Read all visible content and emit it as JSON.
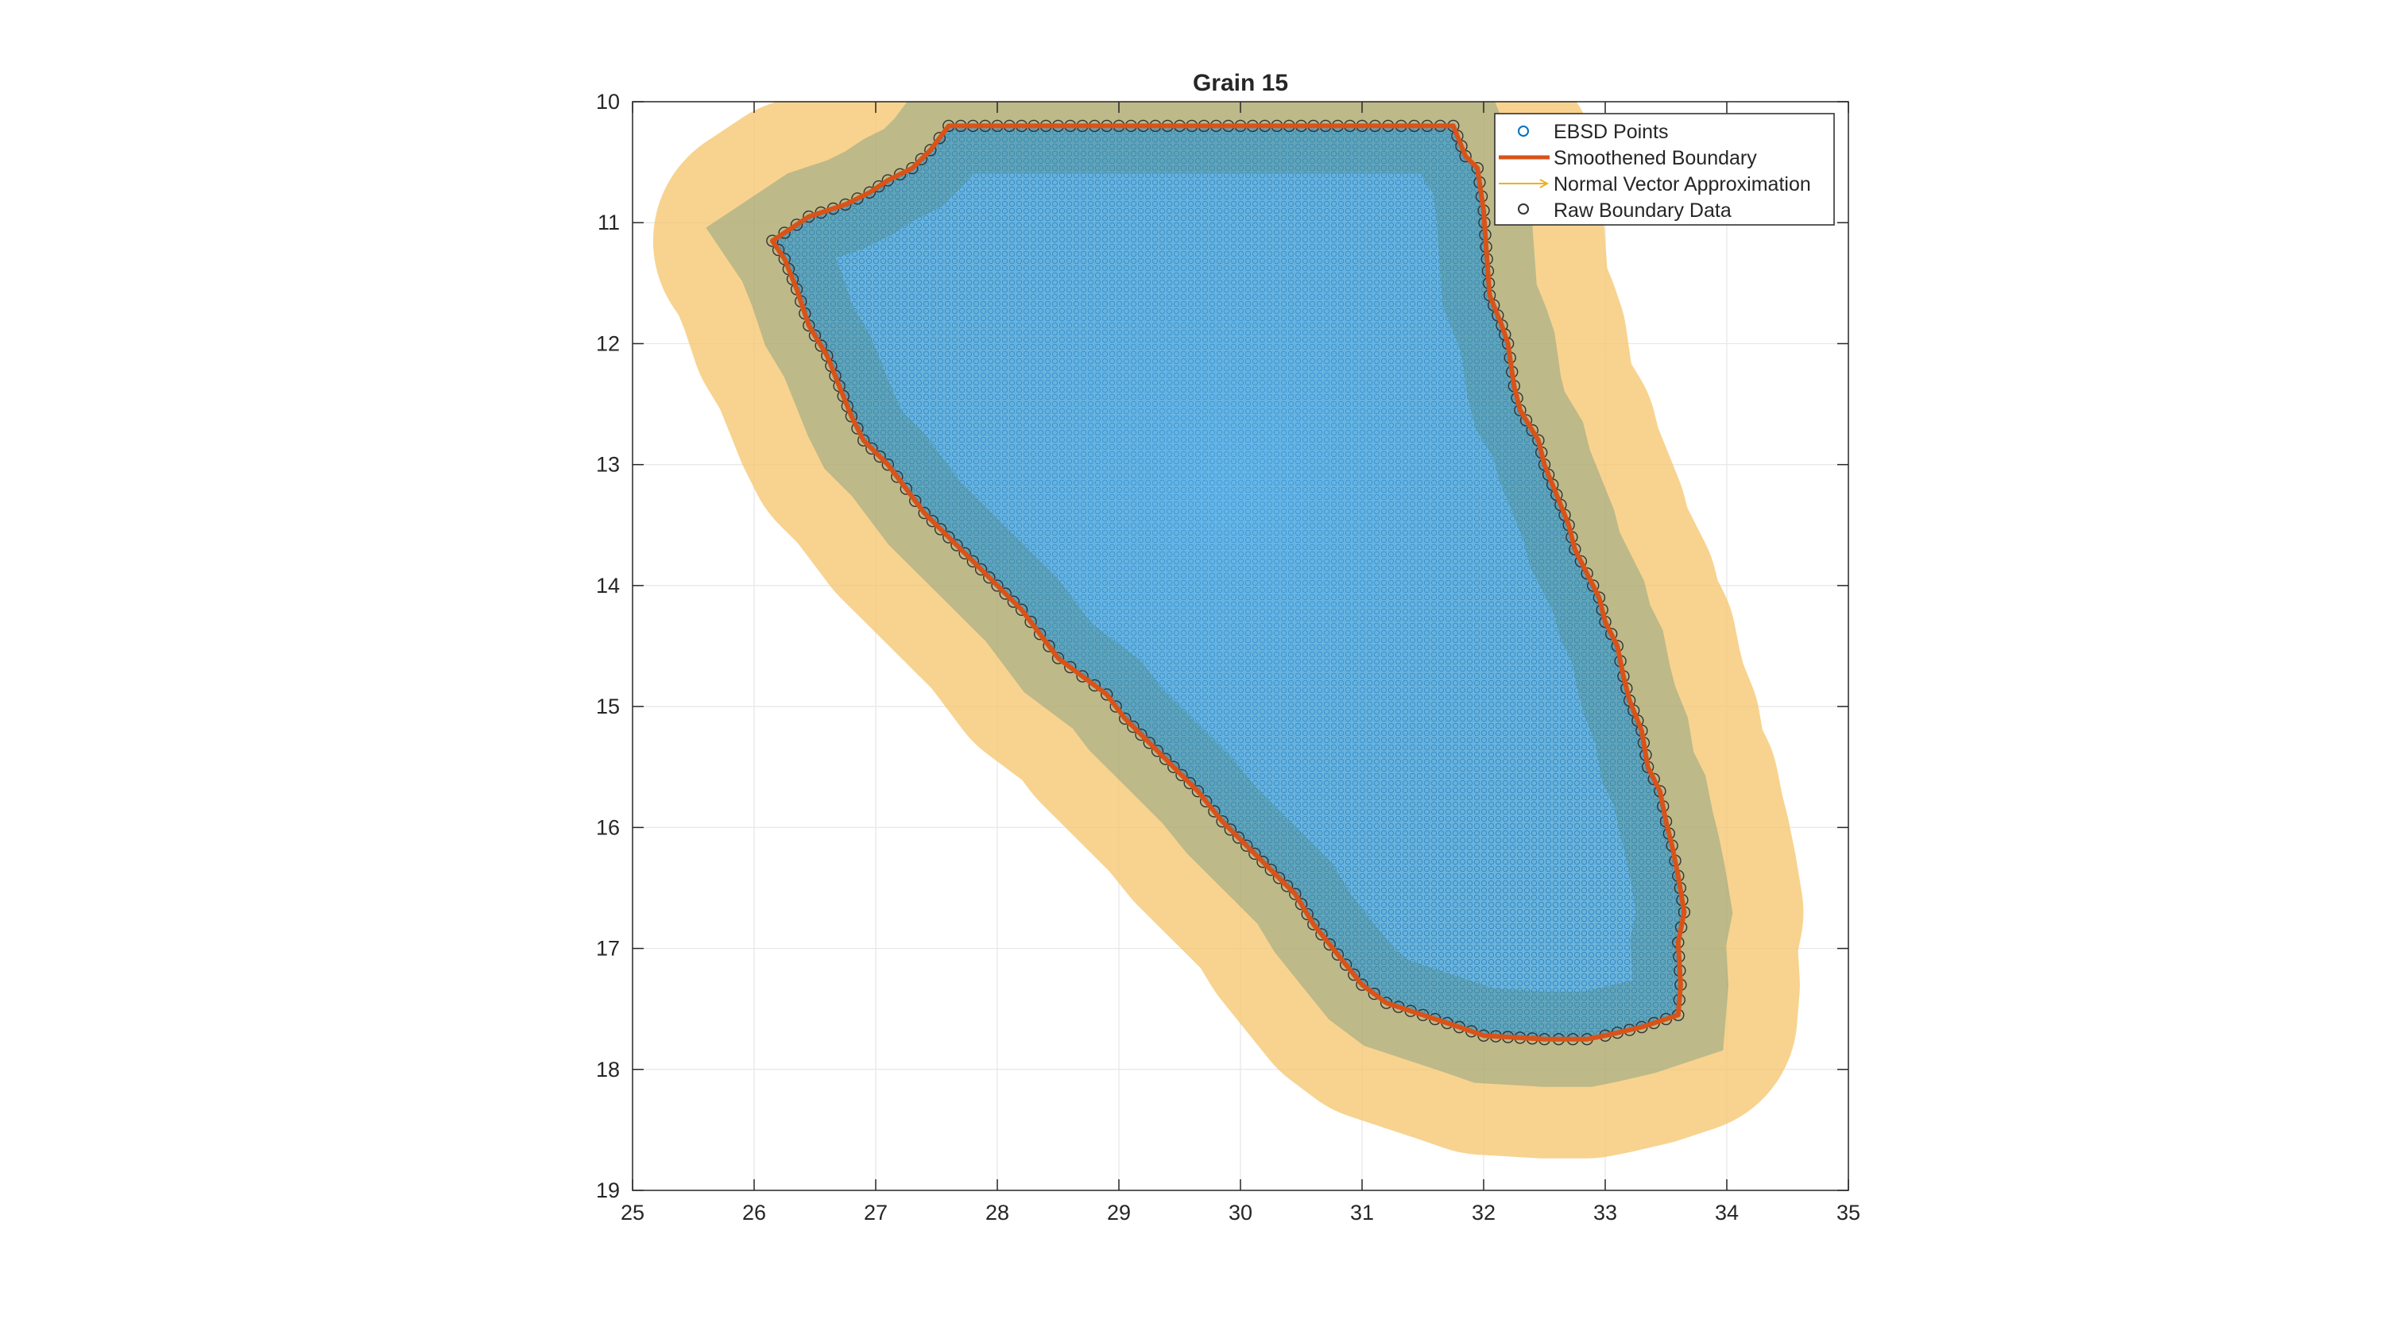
{
  "chart_data": {
    "type": "scatter",
    "title": "Grain 15",
    "xlabel": "",
    "ylabel": "",
    "xlim": [
      25,
      35
    ],
    "ylim": [
      10,
      19
    ],
    "y_direction": "reversed",
    "grid": true,
    "x_ticks": [
      "25",
      "26",
      "27",
      "28",
      "29",
      "30",
      "31",
      "32",
      "33",
      "34",
      "35"
    ],
    "y_ticks": [
      "10",
      "11",
      "12",
      "13",
      "14",
      "15",
      "16",
      "17",
      "18",
      "19"
    ],
    "legend_position": "top-right",
    "series": [
      {
        "name": "EBSD Points",
        "style": "circle-marker",
        "color": "#0072BD"
      },
      {
        "name": "Smoothened Boundary",
        "style": "line",
        "color": "#D95319"
      },
      {
        "name": "Normal Vector Approximation",
        "style": "arrow",
        "color": "#EDB120"
      },
      {
        "name": "Raw Boundary Data",
        "style": "circle-marker",
        "color": "#333333"
      }
    ],
    "boundary": [
      [
        27.6,
        10.2
      ],
      [
        28.0,
        10.2
      ],
      [
        29.0,
        10.2
      ],
      [
        30.0,
        10.2
      ],
      [
        31.0,
        10.2
      ],
      [
        31.75,
        10.2
      ],
      [
        31.85,
        10.45
      ],
      [
        31.95,
        10.55
      ],
      [
        32.0,
        10.9
      ],
      [
        32.02,
        11.2
      ],
      [
        32.05,
        11.6
      ],
      [
        32.15,
        11.85
      ],
      [
        32.2,
        12.0
      ],
      [
        32.25,
        12.35
      ],
      [
        32.3,
        12.55
      ],
      [
        32.45,
        12.8
      ],
      [
        32.5,
        13.0
      ],
      [
        32.6,
        13.25
      ],
      [
        32.7,
        13.5
      ],
      [
        32.75,
        13.7
      ],
      [
        32.85,
        13.9
      ],
      [
        32.95,
        14.1
      ],
      [
        33.0,
        14.3
      ],
      [
        33.1,
        14.5
      ],
      [
        33.15,
        14.75
      ],
      [
        33.2,
        14.95
      ],
      [
        33.3,
        15.2
      ],
      [
        33.35,
        15.5
      ],
      [
        33.45,
        15.7
      ],
      [
        33.5,
        15.95
      ],
      [
        33.55,
        16.15
      ],
      [
        33.6,
        16.4
      ],
      [
        33.65,
        16.7
      ],
      [
        33.6,
        16.95
      ],
      [
        33.62,
        17.3
      ],
      [
        33.6,
        17.55
      ],
      [
        33.3,
        17.65
      ],
      [
        33.0,
        17.72
      ],
      [
        32.85,
        17.75
      ],
      [
        32.5,
        17.75
      ],
      [
        32.0,
        17.72
      ],
      [
        31.8,
        17.65
      ],
      [
        31.5,
        17.55
      ],
      [
        31.2,
        17.45
      ],
      [
        31.0,
        17.3
      ],
      [
        30.8,
        17.05
      ],
      [
        30.6,
        16.8
      ],
      [
        30.45,
        16.55
      ],
      [
        30.25,
        16.35
      ],
      [
        30.05,
        16.15
      ],
      [
        29.85,
        15.95
      ],
      [
        29.65,
        15.7
      ],
      [
        29.45,
        15.5
      ],
      [
        29.25,
        15.3
      ],
      [
        29.05,
        15.1
      ],
      [
        28.9,
        14.9
      ],
      [
        28.7,
        14.75
      ],
      [
        28.5,
        14.6
      ],
      [
        28.35,
        14.4
      ],
      [
        28.2,
        14.2
      ],
      [
        28.0,
        14.0
      ],
      [
        27.8,
        13.8
      ],
      [
        27.6,
        13.6
      ],
      [
        27.4,
        13.4
      ],
      [
        27.25,
        13.2
      ],
      [
        27.1,
        13.0
      ],
      [
        26.9,
        12.8
      ],
      [
        26.8,
        12.6
      ],
      [
        26.7,
        12.35
      ],
      [
        26.6,
        12.1
      ],
      [
        26.45,
        11.85
      ],
      [
        26.35,
        11.55
      ],
      [
        26.25,
        11.3
      ],
      [
        26.15,
        11.15
      ],
      [
        26.45,
        10.95
      ],
      [
        26.75,
        10.85
      ],
      [
        26.95,
        10.75
      ],
      [
        27.1,
        10.65
      ],
      [
        27.3,
        10.55
      ],
      [
        27.45,
        10.4
      ]
    ]
  }
}
